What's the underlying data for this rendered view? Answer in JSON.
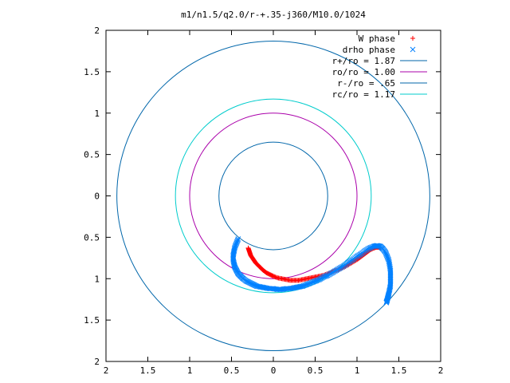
{
  "chart_data": {
    "type": "scatter",
    "title": "m1/n1.5/q2.0/r-+.35-j360/M10.0/1024",
    "xlabel": "",
    "ylabel": "",
    "xlim": [
      -2,
      2
    ],
    "ylim": [
      -2,
      2
    ],
    "x_ticks": [
      -2,
      -1.5,
      -1,
      -0.5,
      0,
      0.5,
      1,
      1.5,
      2
    ],
    "y_ticks": [
      -2,
      -1.5,
      -1,
      -0.5,
      0,
      0.5,
      1,
      1.5,
      2
    ],
    "x_tick_labels": [
      "2",
      "1.5",
      "1",
      "0.5",
      "0",
      "0.5",
      "1",
      "1.5",
      "2"
    ],
    "y_tick_labels": [
      "2",
      "1.5",
      "1",
      "0.5",
      "0",
      "0.5",
      "1",
      "1.5",
      "2"
    ],
    "grid": false,
    "legend_position": "top-right",
    "series": [
      {
        "name": "W phase",
        "kind": "points",
        "marker": "plus",
        "color": "#ff0000",
        "x": [
          -0.3,
          -0.29,
          -0.28,
          -0.27,
          -0.25,
          -0.23,
          -0.21,
          -0.18,
          -0.15,
          -0.12,
          -0.08,
          -0.04,
          0.0,
          0.05,
          0.1,
          0.15,
          0.2,
          0.25,
          0.3,
          0.35,
          0.4,
          0.45,
          0.5,
          0.55,
          0.6,
          0.65,
          0.7,
          0.75,
          0.8,
          0.85,
          0.9,
          0.95,
          1.0,
          1.04,
          1.08,
          1.12,
          1.16,
          1.2,
          1.23,
          1.26,
          1.28
        ],
        "y": [
          -0.63,
          -0.66,
          -0.69,
          -0.72,
          -0.75,
          -0.78,
          -0.81,
          -0.84,
          -0.87,
          -0.9,
          -0.93,
          -0.95,
          -0.97,
          -0.99,
          -1.0,
          -1.01,
          -1.02,
          -1.02,
          -1.02,
          -1.01,
          -1.0,
          -0.99,
          -0.98,
          -0.97,
          -0.96,
          -0.94,
          -0.92,
          -0.9,
          -0.88,
          -0.86,
          -0.83,
          -0.8,
          -0.77,
          -0.74,
          -0.71,
          -0.68,
          -0.65,
          -0.63,
          -0.62,
          -0.62,
          -0.63
        ]
      },
      {
        "name": "drho phase",
        "kind": "points",
        "marker": "cross",
        "color": "#0080ff",
        "x": [
          -0.42,
          -0.44,
          -0.46,
          -0.47,
          -0.48,
          -0.48,
          -0.47,
          -0.46,
          -0.44,
          -0.42,
          -0.39,
          -0.36,
          -0.32,
          -0.28,
          -0.24,
          -0.2,
          -0.15,
          -0.1,
          -0.05,
          0.0,
          0.05,
          0.1,
          0.15,
          0.2,
          0.25,
          0.3,
          0.35,
          0.4,
          0.45,
          0.5,
          0.55,
          0.6,
          0.65,
          0.7,
          0.75,
          0.8,
          0.85,
          0.9,
          0.95,
          1.0,
          1.05,
          1.1,
          1.15,
          1.2,
          1.24,
          1.28,
          1.31,
          1.34,
          1.36,
          1.38,
          1.39,
          1.4,
          1.4,
          1.4,
          1.4,
          1.39,
          1.38,
          1.37,
          1.36,
          1.35
        ],
        "y": [
          -0.52,
          -0.57,
          -0.62,
          -0.67,
          -0.72,
          -0.77,
          -0.82,
          -0.86,
          -0.9,
          -0.94,
          -0.97,
          -1.0,
          -1.03,
          -1.05,
          -1.07,
          -1.09,
          -1.1,
          -1.11,
          -1.12,
          -1.12,
          -1.13,
          -1.13,
          -1.12,
          -1.12,
          -1.11,
          -1.1,
          -1.09,
          -1.07,
          -1.05,
          -1.03,
          -1.01,
          -0.98,
          -0.96,
          -0.93,
          -0.9,
          -0.87,
          -0.84,
          -0.8,
          -0.77,
          -0.73,
          -0.7,
          -0.66,
          -0.63,
          -0.61,
          -0.6,
          -0.61,
          -0.64,
          -0.68,
          -0.73,
          -0.78,
          -0.84,
          -0.9,
          -0.96,
          -1.02,
          -1.08,
          -1.13,
          -1.18,
          -1.22,
          -1.26,
          -1.29
        ]
      },
      {
        "name": "r+/ro = 1.87",
        "kind": "circle",
        "r": 1.87,
        "color": "#0066aa"
      },
      {
        "name": "ro/ro = 1.00",
        "kind": "circle",
        "r": 1.0,
        "color": "#aa00aa"
      },
      {
        "name": "r-/ro =  .65",
        "kind": "circle",
        "r": 0.65,
        "color": "#0066aa"
      },
      {
        "name": "rc/ro = 1.17",
        "kind": "circle",
        "r": 1.17,
        "color": "#00cccc"
      }
    ]
  }
}
